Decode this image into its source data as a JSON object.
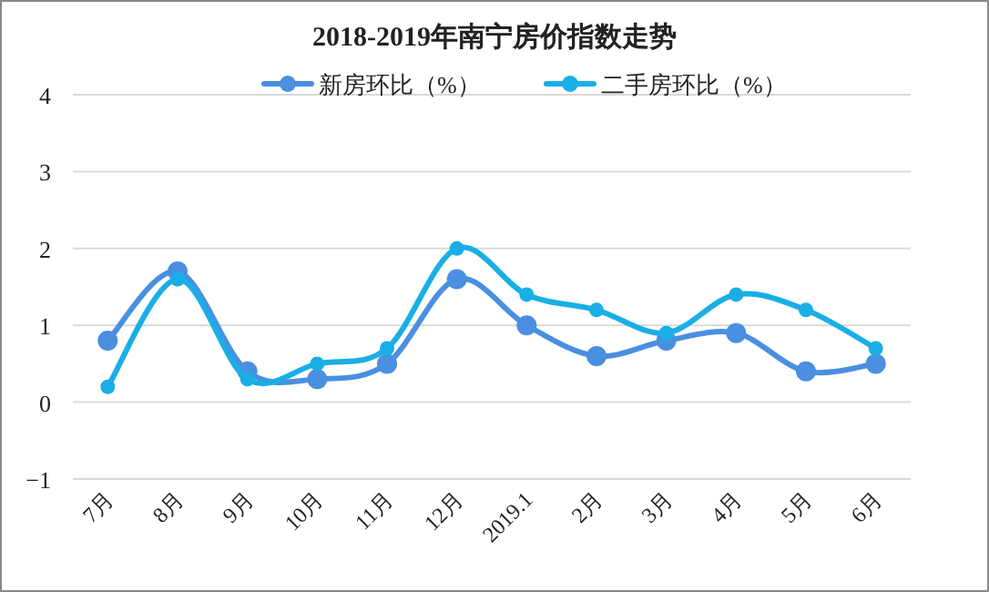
{
  "chart_data": {
    "type": "line",
    "title": "2018-2019年南宁房价指数走势",
    "categories": [
      "7月",
      "8月",
      "9月",
      "10月",
      "11月",
      "12月",
      "2019.1",
      "2月",
      "3月",
      "4月",
      "5月",
      "6月"
    ],
    "series": [
      {
        "name": "新房环比（%）",
        "color": "#4a8fe0",
        "values": [
          0.8,
          1.7,
          0.4,
          0.3,
          0.5,
          1.6,
          1.0,
          0.6,
          0.8,
          0.9,
          0.4,
          0.5
        ]
      },
      {
        "name": "二手房环比（%）",
        "color": "#1aaee6",
        "values": [
          0.2,
          1.6,
          0.3,
          0.5,
          0.7,
          2.0,
          1.4,
          1.2,
          0.9,
          1.4,
          1.2,
          0.7
        ]
      }
    ],
    "ylim": [
      -1,
      4
    ],
    "yticks": [
      -1,
      0,
      1,
      2,
      3,
      4
    ],
    "grid": "y",
    "legend": "top",
    "marker": "circle"
  }
}
